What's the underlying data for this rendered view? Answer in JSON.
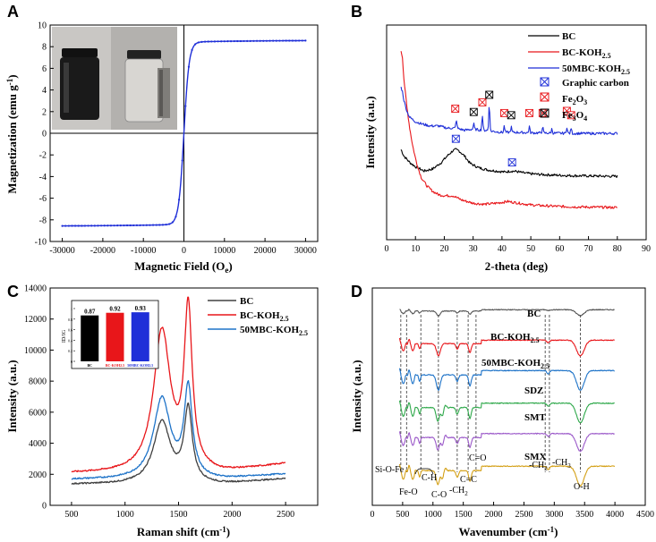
{
  "chart_data": [
    {
      "panel": "A",
      "type": "line",
      "title": "",
      "xlabel": "Magnetic Field (Oe)",
      "ylabel": "Magnetization (emu g-1)",
      "xlim": [
        -33000,
        33000
      ],
      "ylim": [
        -10,
        10
      ],
      "xticks": [
        -30000,
        -20000,
        -10000,
        0,
        10000,
        20000,
        30000
      ],
      "yticks": [
        -10,
        -8,
        -6,
        -4,
        -2,
        0,
        2,
        4,
        6,
        8,
        10
      ],
      "series": [
        {
          "name": "M-H loop",
          "color": "#1f2fd8",
          "ms": 8.6,
          "hk": 1300,
          "xmin": -30000,
          "xmax": 30000
        }
      ],
      "inset": "photo-vials-magnet"
    },
    {
      "panel": "B",
      "type": "line",
      "xlabel": "2-theta (deg)",
      "ylabel": "Intensity (a.u.)",
      "xlim": [
        0,
        90
      ],
      "xticks": [
        0,
        10,
        20,
        30,
        40,
        50,
        60,
        70,
        80,
        90
      ],
      "ylim": [
        0,
        1
      ],
      "series": [
        {
          "name": "BC",
          "color": "#000000",
          "x": [
            5,
            6,
            8,
            10,
            13,
            16,
            19,
            21,
            23,
            24,
            25,
            27,
            29,
            32,
            35,
            38,
            41,
            43,
            45,
            48,
            52,
            56,
            60,
            65,
            70,
            75,
            80
          ],
          "y": [
            0.42,
            0.39,
            0.36,
            0.34,
            0.32,
            0.33,
            0.36,
            0.39,
            0.415,
            0.42,
            0.415,
            0.39,
            0.355,
            0.335,
            0.325,
            0.32,
            0.315,
            0.32,
            0.318,
            0.31,
            0.305,
            0.302,
            0.3,
            0.298,
            0.297,
            0.296,
            0.295
          ]
        },
        {
          "name": "BC-KOH2.5",
          "color": "#e8161a",
          "x": [
            5,
            5.5,
            6,
            7,
            8,
            9,
            10,
            11,
            12,
            14,
            16,
            18,
            20,
            23,
            26,
            30,
            34,
            38,
            42,
            46,
            50,
            55,
            60,
            65,
            70,
            75,
            80
          ],
          "y": [
            0.88,
            0.85,
            0.75,
            0.62,
            0.52,
            0.44,
            0.38,
            0.33,
            0.29,
            0.25,
            0.225,
            0.21,
            0.205,
            0.205,
            0.185,
            0.17,
            0.165,
            0.17,
            0.178,
            0.17,
            0.162,
            0.158,
            0.155,
            0.153,
            0.152,
            0.151,
            0.15
          ]
        },
        {
          "name": "50MBC-KOH2.5",
          "color": "#1f2fd8",
          "x": [
            5,
            5.5,
            6,
            7,
            8,
            10,
            12,
            15,
            18,
            21,
            24,
            27,
            30,
            33,
            35,
            36,
            37,
            40,
            45,
            50,
            55,
            60,
            65,
            70,
            75,
            80
          ],
          "y": [
            0.71,
            0.69,
            0.65,
            0.6,
            0.57,
            0.55,
            0.54,
            0.53,
            0.53,
            0.52,
            0.52,
            0.51,
            0.515,
            0.51,
            0.51,
            0.505,
            0.505,
            0.5,
            0.5,
            0.498,
            0.497,
            0.496,
            0.495,
            0.495,
            0.495,
            0.495
          ]
        }
      ],
      "peaks": [
        {
          "series": 2,
          "x": 24.2,
          "h": 0.04
        },
        {
          "series": 2,
          "x": 30.2,
          "h": 0.025
        },
        {
          "series": 2,
          "x": 33.2,
          "h": 0.07
        },
        {
          "series": 2,
          "x": 35.6,
          "h": 0.13
        },
        {
          "series": 2,
          "x": 40.8,
          "h": 0.03
        },
        {
          "series": 2,
          "x": 43.2,
          "h": 0.025
        },
        {
          "series": 2,
          "x": 49.5,
          "h": 0.03
        },
        {
          "series": 2,
          "x": 54.1,
          "h": 0.03
        },
        {
          "series": 2,
          "x": 57.3,
          "h": 0.02
        },
        {
          "series": 2,
          "x": 62.5,
          "h": 0.03
        },
        {
          "series": 2,
          "x": 64.0,
          "h": 0.025
        }
      ],
      "legend": [
        {
          "label": "BC",
          "color": "#000000",
          "marker": "line"
        },
        {
          "label": "BC-KOH2.5",
          "color": "#e8161a",
          "marker": "line"
        },
        {
          "label": "50MBC-KOH2.5",
          "color": "#1f2fd8",
          "marker": "line"
        },
        {
          "label": "Graphic carbon",
          "color": "#1f2fd8",
          "marker": "box-x"
        },
        {
          "label": "Fe2O3",
          "color": "#e8161a",
          "marker": "box-x"
        },
        {
          "label": "Fe3O4",
          "color": "#000000",
          "marker": "box-x"
        }
      ],
      "markers": [
        {
          "x": 24,
          "y": 0.47,
          "color": "#1f2fd8"
        },
        {
          "x": 43.5,
          "y": 0.36,
          "color": "#1f2fd8"
        },
        {
          "x": 23.8,
          "y": 0.61,
          "color": "#e8161a"
        },
        {
          "x": 33.2,
          "y": 0.64,
          "color": "#e8161a"
        },
        {
          "x": 40.8,
          "y": 0.59,
          "color": "#e8161a"
        },
        {
          "x": 49.5,
          "y": 0.59,
          "color": "#e8161a"
        },
        {
          "x": 54.1,
          "y": 0.59,
          "color": "#e8161a"
        },
        {
          "x": 62.5,
          "y": 0.6,
          "color": "#e8161a"
        },
        {
          "x": 64.0,
          "y": 0.58,
          "color": "#e8161a"
        },
        {
          "x": 30.2,
          "y": 0.595,
          "color": "#000000"
        },
        {
          "x": 35.6,
          "y": 0.675,
          "color": "#000000"
        },
        {
          "x": 43.2,
          "y": 0.58,
          "color": "#000000"
        }
      ]
    },
    {
      "panel": "C",
      "type": "line",
      "xlabel": "Raman shift (cm-1)",
      "ylabel": "Intensity (a.u.)",
      "xlim": [
        300,
        2800
      ],
      "xticks": [
        500,
        1000,
        1500,
        2000,
        2500
      ],
      "ylim": [
        0,
        14000
      ],
      "yticks": [
        0,
        2000,
        4000,
        6000,
        8000,
        10000,
        12000,
        14000
      ],
      "series": [
        {
          "name": "BC",
          "color": "#404040",
          "base": 1350,
          "d": 4000,
          "g": 4700
        },
        {
          "name": "BC-KOH2.5",
          "color": "#e8161a",
          "base": 2050,
          "d": 9100,
          "g": 10200
        },
        {
          "name": "50MBC-KOH2.5",
          "color": "#1e73c8",
          "base": 1650,
          "d": 5200,
          "g": 5700
        }
      ],
      "inset": {
        "type": "bar",
        "ylabel": "ID/IG",
        "ylim": [
          0,
          1.0
        ],
        "yticks": [
          0,
          0.2,
          0.4,
          0.6,
          0.8,
          1.0
        ],
        "categories": [
          "BC",
          "BC-KOH2.5",
          "50MBC-KOH2.5"
        ],
        "values": [
          0.87,
          0.92,
          0.93
        ],
        "labels": [
          "0.87",
          "0.92",
          "0.93"
        ],
        "colors": [
          "#000000",
          "#e8161a",
          "#1f2fd8"
        ]
      }
    },
    {
      "panel": "D",
      "type": "line",
      "xlabel": "Wavenumber (cm-1)",
      "ylabel": "Intensity (a.u.)",
      "xlim": [
        0,
        4500
      ],
      "xticks": [
        0,
        500,
        1000,
        1500,
        2000,
        2500,
        3000,
        3500,
        4000,
        4500
      ],
      "ylim": [
        0,
        1
      ],
      "series": [
        {
          "name": "BC",
          "color": "#555555",
          "offset": 0.9,
          "scale": 0.3
        },
        {
          "name": "BC-KOH2.5",
          "color": "#e8161a",
          "offset": 0.76,
          "scale": 0.8
        },
        {
          "name": "50MBC-KOH2.5",
          "color": "#1e73c8",
          "offset": 0.62,
          "scale": 1.0
        },
        {
          "name": "SDZ",
          "color": "#2ea84a",
          "offset": 0.47,
          "scale": 1.0
        },
        {
          "name": "SMT",
          "color": "#9b59c9",
          "offset": 0.33,
          "scale": 0.9
        },
        {
          "name": "SMX",
          "color": "#d4a017",
          "offset": 0.18,
          "scale": 1.0
        }
      ],
      "bands": [
        {
          "x": 3430,
          "d": 0.09,
          "w": 90
        },
        {
          "x": 1090,
          "d": 0.07,
          "w": 45
        },
        {
          "x": 1400,
          "d": 0.03,
          "w": 30
        },
        {
          "x": 1610,
          "d": 0.05,
          "w": 30
        },
        {
          "x": 580,
          "d": 0.04,
          "w": 20
        },
        {
          "x": 780,
          "d": 0.03,
          "w": 20
        },
        {
          "x": 2900,
          "d": 0.015,
          "w": 30
        }
      ],
      "guide_lines": [
        470,
        565,
        800,
        1090,
        1400,
        1580,
        1710,
        2850,
        2920,
        3430
      ],
      "labels_on_plot": [
        "BC",
        "BC-KOH2.5",
        "50MBC-KOH2.5",
        "SDZ",
        "SMT",
        "SMX"
      ],
      "annotations": [
        "Si-O-Fe",
        "Fe-O",
        "C-H",
        "C-O",
        "-CH2",
        "C=C",
        "C=O",
        "-CH2",
        "-CH3",
        "O-H"
      ]
    }
  ],
  "panel_letters": [
    "A",
    "B",
    "C",
    "D"
  ],
  "texts": {
    "a_ylabel": "Magnetization (emu g",
    "a_ylabel_sup": "-1",
    "a_ylabel_end": ")",
    "a_xlabel": "Magnetic Field (O",
    "a_xlabel_sub": "e",
    "a_xlabel_end": ")",
    "b_xlabel": "2-theta (deg)",
    "b_ylabel": "Intensity (a.u.)",
    "c_xlabel": "Raman shift (cm",
    "c_xlabel_sup": "-1",
    "c_xlabel_end": ")",
    "c_ylabel": "Intensity (a.u.)",
    "d_xlabel": "Wavenumber (cm",
    "d_xlabel_sup": "-1",
    "d_xlabel_end": ")",
    "d_ylabel": "Intensity (a.u.)",
    "leg_bc": "BC",
    "leg_koh": "BC-KOH",
    "leg_koh_sub": "2.5",
    "leg_mbc": "50MBC-KOH",
    "leg_mbc_sub": "2.5",
    "leg_graphic": "Graphic carbon",
    "leg_fe2o3": "Fe",
    "leg_fe2o3_sub1": "2",
    "leg_fe2o3_mid": "O",
    "leg_fe2o3_sub2": "3",
    "leg_fe3o4": "Fe",
    "leg_fe3o4_sub1": "3",
    "leg_fe3o4_mid": "O",
    "leg_fe3o4_sub2": "4",
    "inset_ylabel": "ID/IG",
    "inset_cat1": "BC",
    "inset_cat2": "BC-KOH2.5",
    "inset_cat3": "50MBC-KOH2.5",
    "d_lbl_bc": "BC",
    "d_lbl_koh": "BC-KOH",
    "d_lbl_koh_sub": "2.5",
    "d_lbl_mbc": "50MBC-KOH",
    "d_lbl_mbc_sub": "2.5",
    "d_lbl_sdz": "SDZ",
    "d_lbl_smt": "SMT",
    "d_lbl_smx": "SMX",
    "an_siofe": "Si-O-Fe",
    "an_feo": "Fe-O",
    "an_ch": "C-H",
    "an_co": "C-O",
    "an_ch2a": "-CH",
    "an_ch2a_sub": "2",
    "an_cc": "C=C",
    "an_cdo": "C=O",
    "an_ch2b": "-CH",
    "an_ch2b_sub": "2",
    "an_ch3": "-CH",
    "an_ch3_sub": "3",
    "an_oh": "O-H"
  }
}
